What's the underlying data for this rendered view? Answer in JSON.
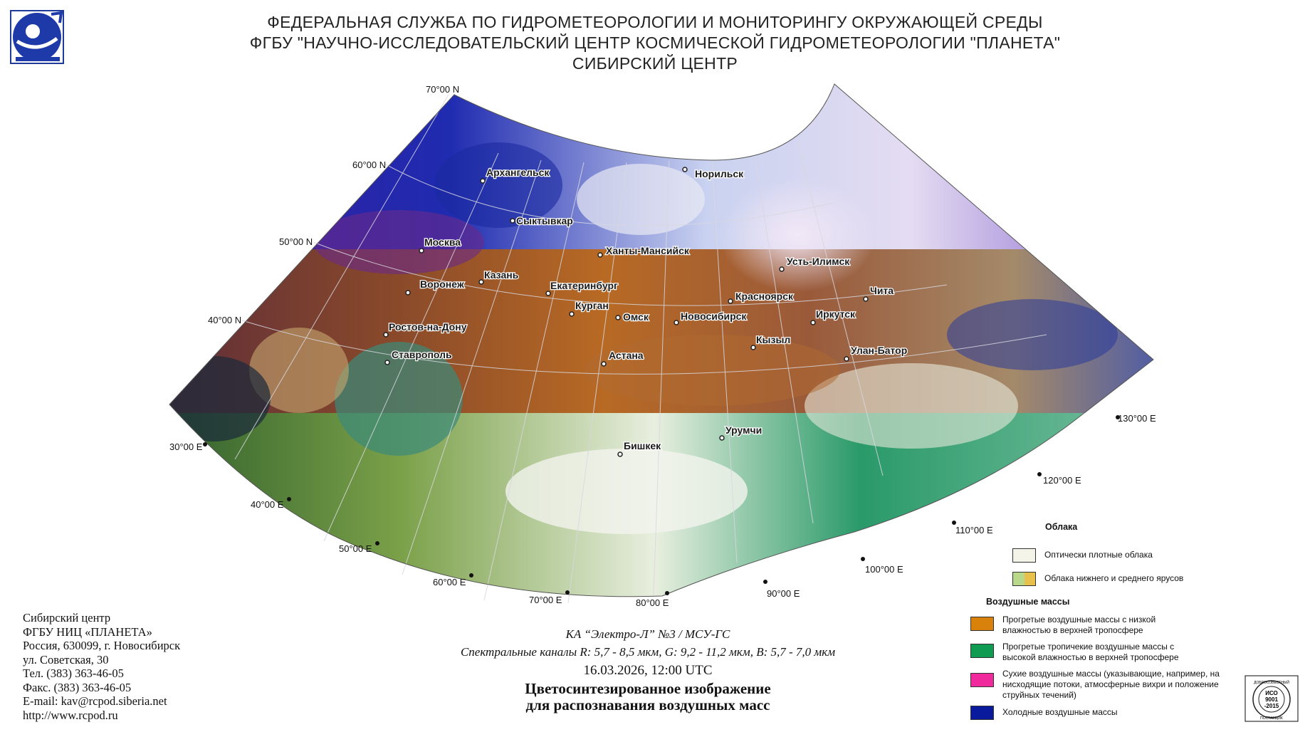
{
  "header": {
    "line1": "ФЕДЕРАЛЬНАЯ СЛУЖБА ПО ГИДРОМЕТЕОРОЛОГИИ И МОНИТОРИНГУ ОКРУЖАЮЩЕЙ СРЕДЫ",
    "line2": "ФГБУ \"НАУЧНО-ИССЛЕДОВАТЕЛЬСКИЙ ЦЕНТР КОСМИЧЕСКОЙ ГИДРОМЕТЕОРОЛОГИИ \"ПЛАНЕТА\"",
    "line3": "СИБИРСКИЙ ЦЕНТР"
  },
  "map": {
    "lat_labels": [
      "70°00 N",
      "60°00 N",
      "50°00 N",
      "40°00 N"
    ],
    "lon_labels": [
      "30°00 E",
      "40°00 E",
      "50°00 E",
      "60°00 E",
      "70°00 E",
      "80°00 E",
      "90°00 E",
      "100°00 E",
      "110°00 E",
      "120°00 E",
      "130°00 E"
    ],
    "cities": [
      "Архангельск",
      "Норильск",
      "Сыктывкар",
      "Москва",
      "Ханты-Мансийск",
      "Казань",
      "Усть-Илимск",
      "Воронеж",
      "Екатеринбург",
      "Красноярск",
      "Чита",
      "Курган",
      "Омск",
      "Новосибирск",
      "Иркутск",
      "Ростов-на-Дону",
      "Кызыл",
      "Ставрополь",
      "Астана",
      "Улан-Батор",
      "Урумчи",
      "Бишкек"
    ]
  },
  "legend": {
    "clouds_title": "Облака",
    "clouds": [
      {
        "label": "Оптически плотные облака",
        "color": "#f4f4e8"
      },
      {
        "label": "Облака нижнего и среднего ярусов",
        "color": "#b9d98a",
        "color2": "#e8c14c"
      }
    ],
    "masses_title": "Воздушные массы",
    "masses": [
      {
        "label": "Прогретые воздушные массы с низкой влажностью в верхней тропосфере",
        "color": "#d9820b"
      },
      {
        "label": "Прогретые тропичекие воздушные массы с высокой влажностью в верхней тропосфере",
        "color": "#0f9b52"
      },
      {
        "label": "Сухие воздушные массы (указывающие, например, на нисходящие потоки, атмосферные вихри и положение струйных течений)",
        "color": "#f02a9c"
      },
      {
        "label": "Холодные воздушные массы",
        "color": "#0a1a9c"
      }
    ]
  },
  "caption": {
    "satellite": "КА “Электро-Л” №3 / МСУ-ГС",
    "channels": "Спектральные каналы R: 5,7 - 8,5 мкм, G: 9,2 - 11,2 мкм, B: 5,7 - 7,0 мкм",
    "datetime": "16.03.2026, 12:00 UTC",
    "title1": "Цветосинтезированное изображение",
    "title2": "для распознавания воздушных масс"
  },
  "contact": {
    "lines": [
      "Сибирский центр",
      "ФГБУ НИЦ «ПЛАНЕТА»",
      "Россия, 630099, г. Новосибирск",
      "ул. Советская, 30",
      "Тел. (383) 363-46-05",
      "Факс. (383) 363-46-05",
      "E-mail: kav@rcpod.siberia.net",
      "http://www.rcpod.ru"
    ]
  },
  "iso": {
    "top": "ДОБРОСОВЕСТНЫЙ",
    "l1": "ИСО",
    "l2": "9001",
    "l3": "-2015",
    "bottom": "ПОСТАВЩИК"
  }
}
